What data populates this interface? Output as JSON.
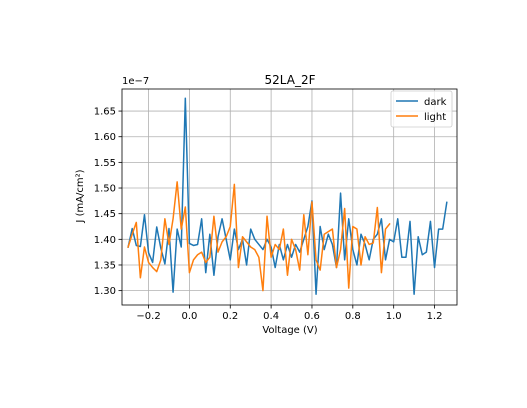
{
  "chart_data": {
    "type": "line",
    "title": "52LA_2F",
    "xlabel": "Voltage (V)",
    "ylabel": "J (mA/cm²)",
    "y_offset_label": "1e−7",
    "xlim": [
      -0.33,
      1.31
    ],
    "ylim": [
      1.272,
      1.693
    ],
    "x_ticks": [
      -0.2,
      0.0,
      0.2,
      0.4,
      0.6,
      0.8,
      1.0,
      1.2
    ],
    "x_tick_labels": [
      "−0.2",
      "0.0",
      "0.2",
      "0.4",
      "0.6",
      "0.8",
      "1.0",
      "1.2"
    ],
    "y_ticks": [
      1.3,
      1.35,
      1.4,
      1.45,
      1.5,
      1.55,
      1.6,
      1.65
    ],
    "y_tick_labels": [
      "1.30",
      "1.35",
      "1.40",
      "1.45",
      "1.50",
      "1.55",
      "1.60",
      "1.65"
    ],
    "grid": true,
    "legend_position": "top-right",
    "x": [
      -0.3,
      -0.28,
      -0.26,
      -0.24,
      -0.22,
      -0.2,
      -0.18,
      -0.16,
      -0.14,
      -0.12,
      -0.1,
      -0.08,
      -0.06,
      -0.04,
      -0.02,
      0.0,
      0.02,
      0.04,
      0.06,
      0.08,
      0.1,
      0.12,
      0.14,
      0.16,
      0.18,
      0.2,
      0.22,
      0.24,
      0.26,
      0.28,
      0.3,
      0.32,
      0.34,
      0.36,
      0.38,
      0.4,
      0.42,
      0.44,
      0.46,
      0.48,
      0.5,
      0.52,
      0.54,
      0.56,
      0.58,
      0.6,
      0.62,
      0.64,
      0.66,
      0.68,
      0.7,
      0.72,
      0.74,
      0.76,
      0.78,
      0.8,
      0.82,
      0.84,
      0.86,
      0.88,
      0.9,
      0.92,
      0.94,
      0.96,
      0.98,
      1.0,
      1.02,
      1.04,
      1.06,
      1.08,
      1.1,
      1.12,
      1.14,
      1.16,
      1.18,
      1.2,
      1.22,
      1.24,
      1.26,
      1.28
    ],
    "series": [
      {
        "name": "dark",
        "color": "#1f77b4",
        "values": [
          1.385,
          1.421,
          1.388,
          1.386,
          1.448,
          1.374,
          1.355,
          1.424,
          1.383,
          1.352,
          1.421,
          1.297,
          1.42,
          1.385,
          1.675,
          1.392,
          1.388,
          1.39,
          1.44,
          1.335,
          1.41,
          1.33,
          1.405,
          1.44,
          1.4,
          1.36,
          1.42,
          1.38,
          1.4,
          1.35,
          1.42,
          1.4,
          1.39,
          1.38,
          1.4,
          1.385,
          1.345,
          1.39,
          1.36,
          1.39,
          1.365,
          1.39,
          1.375,
          1.4,
          1.425,
          1.475,
          1.293,
          1.425,
          1.38,
          1.41,
          1.39,
          1.345,
          1.49,
          1.36,
          1.44,
          1.38,
          1.35,
          1.41,
          1.39,
          1.36,
          1.4,
          1.41,
          1.44,
          1.36,
          1.4,
          1.395,
          1.44,
          1.365,
          1.365,
          1.435,
          1.293,
          1.405,
          1.37,
          1.375,
          1.435,
          1.345,
          1.42,
          1.42,
          1.472,
          null
        ],
        "values_note_trim": true
      },
      {
        "name": "light",
        "color": "#ff7f0e",
        "values": [
          1.385,
          1.41,
          1.433,
          1.325,
          1.385,
          1.355,
          1.345,
          1.337,
          1.36,
          1.44,
          1.39,
          1.44,
          1.512,
          1.42,
          1.463,
          1.335,
          1.36,
          1.37,
          1.375,
          1.355,
          1.365,
          1.445,
          1.375,
          1.395,
          1.405,
          1.425,
          1.507,
          1.345,
          1.405,
          1.395,
          1.385,
          1.38,
          1.365,
          1.3,
          1.445,
          1.365,
          1.39,
          1.38,
          1.42,
          1.33,
          1.4,
          1.38,
          1.34,
          1.448,
          1.37,
          1.473,
          1.36,
          1.34,
          1.41,
          1.415,
          1.42,
          1.345,
          1.38,
          1.46,
          1.305,
          1.425,
          1.42,
          1.35,
          1.405,
          1.39,
          1.393,
          1.462,
          1.335,
          1.42,
          1.43,
          null,
          null,
          null,
          null,
          null,
          null,
          null,
          null,
          null,
          null,
          null,
          null,
          null,
          null,
          null
        ]
      }
    ]
  }
}
